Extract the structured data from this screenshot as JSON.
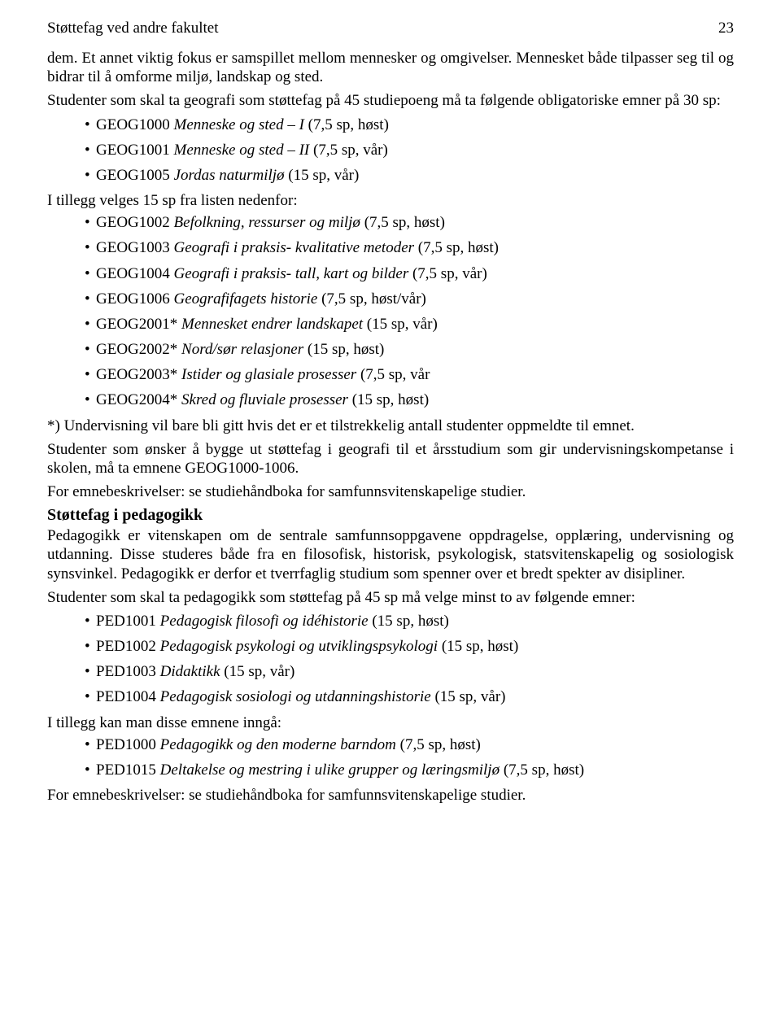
{
  "header": {
    "title": "Støttefag ved andre fakultet",
    "page_number": "23"
  },
  "intro_para": "dem. Et annet viktig fokus er samspillet mellom mennesker og omgivelser. Mennesket både tilpasser seg til og bidrar til å omforme miljø, landskap og sted.",
  "geo_intro": "Studenter som skal ta geografi som støttefag på 45 studiepoeng må ta følgende obligatoriske emner på 30 sp:",
  "geo_mandatory": [
    {
      "code": "GEOG1000",
      "name": "Menneske og sted – I",
      "suffix": "(7,5 sp, høst)"
    },
    {
      "code": "GEOG1001",
      "name": "Menneske og sted – II",
      "suffix": "(7,5 sp, vår)"
    },
    {
      "code": "GEOG1005",
      "name": "Jordas naturmiljø",
      "suffix": "(15 sp, vår)"
    }
  ],
  "geo_elective_intro": "I tillegg velges 15 sp fra listen nedenfor:",
  "geo_electives": [
    {
      "code": "GEOG1002",
      "name": "Befolkning, ressurser og miljø",
      "suffix": "(7,5 sp, høst)"
    },
    {
      "code": "GEOG1003",
      "name": "Geografi i praksis- kvalitative metoder",
      "suffix": "(7,5 sp, høst)"
    },
    {
      "code": "GEOG1004",
      "name": "Geografi i praksis- tall, kart og bilder",
      "suffix": "(7,5 sp, vår)"
    },
    {
      "code": "GEOG1006",
      "name": "Geografifagets historie",
      "suffix": "(7,5 sp, høst/vår)"
    },
    {
      "code": "GEOG2001*",
      "name": "Mennesket endrer landskapet",
      "suffix": "(15 sp, vår)"
    },
    {
      "code": "GEOG2002*",
      "name": "Nord/sør relasjoner",
      "suffix": "(15 sp, høst)"
    },
    {
      "code": "GEOG2003*",
      "name": "Istider og glasiale prosesser",
      "suffix": "(7,5 sp, vår"
    },
    {
      "code": "GEOG2004*",
      "name": "Skred og fluviale prosesser",
      "suffix": "(15 sp, høst)"
    }
  ],
  "geo_footnote": "*) Undervisning vil bare bli gitt hvis det er et tilstrekkelig antall studenter oppmeldte til emnet.",
  "geo_note1": "Studenter som ønsker å bygge ut støttefag i geografi til et årsstudium som gir undervisningskompetanse i skolen, må ta emnene GEOG1000-1006.",
  "geo_note2": "For emnebeskrivelser: se studiehåndboka for samfunnsvitenskapelige studier.",
  "ped_title": "Støttefag i pedagogikk",
  "ped_intro": "Pedagogikk er vitenskapen om de sentrale samfunnsoppgavene oppdragelse, opplæring, undervisning og utdanning. Disse studeres både fra en filosofisk, historisk, psykologisk, statsvitenskapelig og sosiologisk synsvinkel. Pedagogikk er derfor et tverrfaglig studium som spenner over et bredt spekter av disipliner.",
  "ped_req_intro": "Studenter som skal ta pedagogikk som støttefag på 45 sp må velge minst to av følgende emner:",
  "ped_mandatory": [
    {
      "code": "PED1001",
      "name": "Pedagogisk filosofi og idéhistorie",
      "suffix": "(15 sp, høst)"
    },
    {
      "code": "PED1002",
      "name": "Pedagogisk psykologi og utviklingspsykologi",
      "suffix": "(15 sp, høst)"
    },
    {
      "code": "PED1003",
      "name": "Didaktikk",
      "suffix": "(15 sp, vår)"
    },
    {
      "code": "PED1004",
      "name": "Pedagogisk sosiologi og utdanningshistorie",
      "suffix": "(15 sp, vår)"
    }
  ],
  "ped_extra_intro": "I tillegg kan man disse emnene inngå:",
  "ped_extra": [
    {
      "code": "PED1000",
      "name": "Pedagogikk og den moderne barndom",
      "suffix": "(7,5 sp, høst)"
    },
    {
      "code": "PED1015",
      "name": "Deltakelse og mestring i ulike grupper og læringsmiljø",
      "suffix": "(7,5 sp, høst)"
    }
  ],
  "ped_note": "For emnebeskrivelser: se studiehåndboka for samfunnsvitenskapelige studier."
}
